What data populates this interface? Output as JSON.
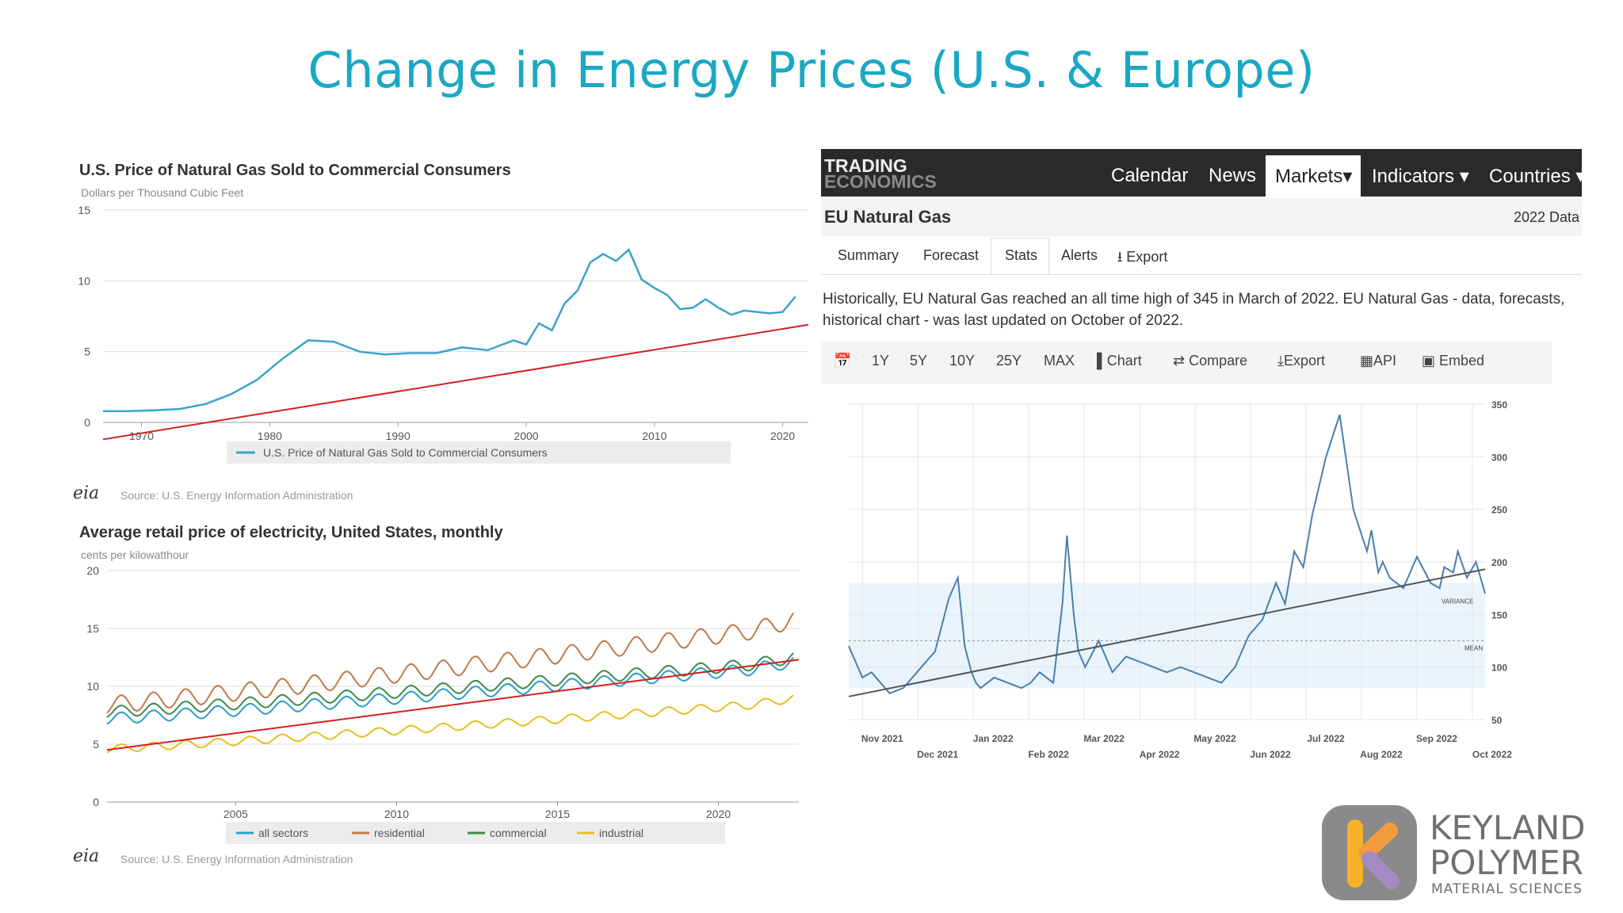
{
  "slide": {
    "title": "Change in Energy Prices (U.S. & Europe)"
  },
  "colors": {
    "title": "#1aa8c4",
    "trend": "#d42020",
    "gas_line": "#3aa3cc",
    "te_line": "#4a7fad"
  },
  "chart_data": [
    {
      "id": "us-gas",
      "type": "line",
      "title": "U.S. Price of Natural Gas Sold to Commercial Consumers",
      "ylabel": "Dollars per Thousand Cubic Feet",
      "xlim": [
        1967,
        2022
      ],
      "ylim": [
        0,
        15
      ],
      "xticks": [
        1970,
        1980,
        1990,
        2000,
        2010,
        2020
      ],
      "yticks": [
        0,
        5,
        10,
        15
      ],
      "legend": "U.S. Price of Natural Gas Sold to Commercial Consumers",
      "source": "Source: U.S. Energy Information Administration",
      "series": [
        {
          "name": "U.S. Price of Natural Gas Sold to Commercial Consumers",
          "x": [
            1967,
            1969,
            1971,
            1973,
            1975,
            1977,
            1979,
            1981,
            1983,
            1985,
            1987,
            1989,
            1991,
            1993,
            1995,
            1997,
            1999,
            2000,
            2001,
            2002,
            2003,
            2004,
            2005,
            2006,
            2007,
            2008,
            2009,
            2010,
            2011,
            2012,
            2013,
            2014,
            2015,
            2016,
            2017,
            2018,
            2019,
            2020,
            2021
          ],
          "y": [
            0.8,
            0.8,
            0.85,
            0.95,
            1.3,
            2.0,
            3.0,
            4.5,
            5.8,
            5.7,
            5.0,
            4.8,
            4.9,
            4.9,
            5.3,
            5.1,
            5.8,
            5.5,
            7.0,
            6.5,
            8.4,
            9.3,
            11.3,
            11.9,
            11.4,
            12.2,
            10.1,
            9.5,
            9.0,
            8.0,
            8.1,
            8.7,
            8.1,
            7.6,
            7.9,
            7.8,
            7.7,
            7.8,
            8.9
          ]
        }
      ],
      "trend": {
        "x": [
          1967,
          2022
        ],
        "y": [
          -1.2,
          6.9
        ]
      }
    },
    {
      "id": "us-electricity",
      "type": "line",
      "title": "Average retail price of electricity, United States, monthly",
      "ylabel": "cents per kilowatthour",
      "xlim": [
        2001,
        2022.5
      ],
      "ylim": [
        0,
        20
      ],
      "xticks": [
        2005,
        2010,
        2015,
        2020
      ],
      "yticks": [
        0,
        5,
        10,
        15,
        20
      ],
      "source": "Source: U.S. Energy Information Administration",
      "series": [
        {
          "name": "all sectors",
          "color": "#2a9fc7",
          "start": 7.2,
          "end": 11.8,
          "amp": 0.5
        },
        {
          "name": "residential",
          "color": "#c07a48",
          "start": 8.4,
          "end": 15.3,
          "amp": 0.75
        },
        {
          "name": "commercial",
          "color": "#3f8a4a",
          "start": 7.8,
          "end": 12.2,
          "amp": 0.5
        },
        {
          "name": "industrial",
          "color": "#e5c020",
          "start": 4.6,
          "end": 8.7,
          "amp": 0.35
        }
      ],
      "trend": {
        "x": [
          2001,
          2022.5
        ],
        "y": [
          4.5,
          12.3
        ]
      }
    },
    {
      "id": "eu-gas",
      "type": "line",
      "title": "EU Natural Gas",
      "ylim": [
        50,
        350
      ],
      "yticks": [
        50,
        100,
        150,
        200,
        250,
        300,
        350
      ],
      "xticks_top": [
        "Nov 2021",
        "Jan 2022",
        "Mar 2022",
        "May 2022",
        "Jul 2022",
        "Sep 2022"
      ],
      "xticks_bottom": [
        "Dec 2021",
        "Feb 2022",
        "Apr 2022",
        "Jun 2022",
        "Aug 2022",
        "Oct 2022"
      ],
      "band_label": "VARIANCE",
      "mean_label": "MEAN",
      "mean": 125,
      "band": [
        80,
        180
      ],
      "series": [
        {
          "name": "EU Natural Gas",
          "t": [
            0,
            3,
            5,
            9,
            12,
            15,
            17,
            19,
            22,
            24,
            25.5,
            27,
            28,
            29,
            32,
            35,
            38,
            40,
            42,
            45,
            47,
            48,
            49.5,
            50.5,
            52,
            55,
            58,
            61,
            64,
            67,
            70,
            73,
            76,
            79,
            82,
            85,
            88,
            91,
            94,
            96,
            98,
            100,
            102,
            105,
            108,
            111,
            114,
            115,
            116.5,
            117.5,
            119,
            122,
            125,
            128,
            130,
            131,
            133,
            134,
            136,
            138,
            140
          ],
          "y": [
            120,
            90,
            95,
            75,
            80,
            95,
            105,
            115,
            165,
            185,
            120,
            95,
            85,
            80,
            90,
            85,
            80,
            85,
            95,
            85,
            160,
            225,
            150,
            115,
            100,
            125,
            95,
            110,
            105,
            100,
            95,
            100,
            95,
            90,
            85,
            100,
            130,
            145,
            180,
            160,
            210,
            195,
            245,
            300,
            340,
            250,
            210,
            230,
            190,
            200,
            185,
            175,
            205,
            180,
            175,
            195,
            190,
            210,
            185,
            200,
            170
          ]
        }
      ],
      "trend": {
        "t": [
          0,
          140
        ],
        "y": [
          72,
          193
        ]
      }
    }
  ],
  "gas_chart": {
    "title": "U.S. Price of Natural Gas Sold to Commercial Consumers",
    "ylabel": "Dollars per Thousand Cubic Feet",
    "legend": "U.S. Price of Natural Gas Sold to Commercial Consumers",
    "source": "Source: U.S. Energy Information Administration",
    "eia": "eia"
  },
  "elec_chart": {
    "title": "Average retail price of electricity, United States, monthly",
    "ylabel": "cents per kilowatthour",
    "legend": [
      "all sectors",
      "residential",
      "commercial",
      "industrial"
    ],
    "source": "Source: U.S. Energy Information Administration",
    "eia": "eia"
  },
  "te": {
    "logo_top": "TRADING",
    "logo_bottom": "ECONOMICS",
    "nav": [
      "Calendar",
      "News",
      "Markets▾",
      "Indicators ▾",
      "Countries ▾"
    ],
    "heading": "EU Natural Gas",
    "year_label": "2022 Data",
    "tabs": [
      "Summary",
      "Forecast",
      "Stats",
      "Alerts",
      "⭳ Export"
    ],
    "description": "Historically, EU Natural Gas reached an all time high of 345 in March of 2022. EU Natural Gas - data, forecasts, historical chart - was last updated on October of 2022.",
    "toolbar": [
      "1Y",
      "5Y",
      "10Y",
      "25Y",
      "MAX",
      "Chart",
      "Compare",
      "Export",
      "API",
      "Embed"
    ],
    "calendar_icon": "calendar-icon"
  },
  "logo": {
    "line1": "KEYLAND",
    "line2": "POLYMER",
    "line3": "MATERIAL SCIENCES"
  }
}
